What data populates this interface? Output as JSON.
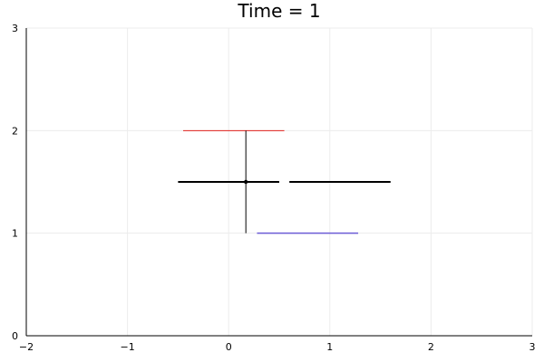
{
  "chart_data": {
    "type": "line",
    "title": "Time = 1",
    "xlabel": "",
    "ylabel": "",
    "xlim": [
      -2,
      3
    ],
    "ylim": [
      0,
      3
    ],
    "x_ticks": [
      -2,
      -1,
      0,
      1,
      2,
      3
    ],
    "x_tick_labels": [
      "−2",
      "−1",
      "0",
      "1",
      "2",
      "3"
    ],
    "y_ticks": [
      0,
      1,
      2,
      3
    ],
    "y_tick_labels": [
      "0",
      "1",
      "2",
      "3"
    ],
    "grid": true,
    "legend": "none",
    "segments": [
      {
        "name": "",
        "x": [
          -0.45,
          0.55
        ],
        "y": [
          2,
          2
        ],
        "color": "#e0201b",
        "stroke": 1
      },
      {
        "name": "",
        "x": [
          0.28,
          1.28
        ],
        "y": [
          1,
          1
        ],
        "color": "#6b5bd6",
        "stroke": 1.5
      },
      {
        "name": "",
        "x": [
          -0.5,
          0.5
        ],
        "y": [
          1.5,
          1.5
        ],
        "color": "#000000",
        "stroke": 2
      },
      {
        "name": "",
        "x": [
          0.6,
          1.6
        ],
        "y": [
          1.5,
          1.5
        ],
        "color": "#000000",
        "stroke": 2
      },
      {
        "name": "",
        "x": [
          0.17,
          0.17
        ],
        "y": [
          1,
          2
        ],
        "color": "#000000",
        "stroke": 1
      }
    ],
    "points": [
      {
        "x": 0.17,
        "y": 1.5,
        "color": "#000000"
      }
    ]
  }
}
